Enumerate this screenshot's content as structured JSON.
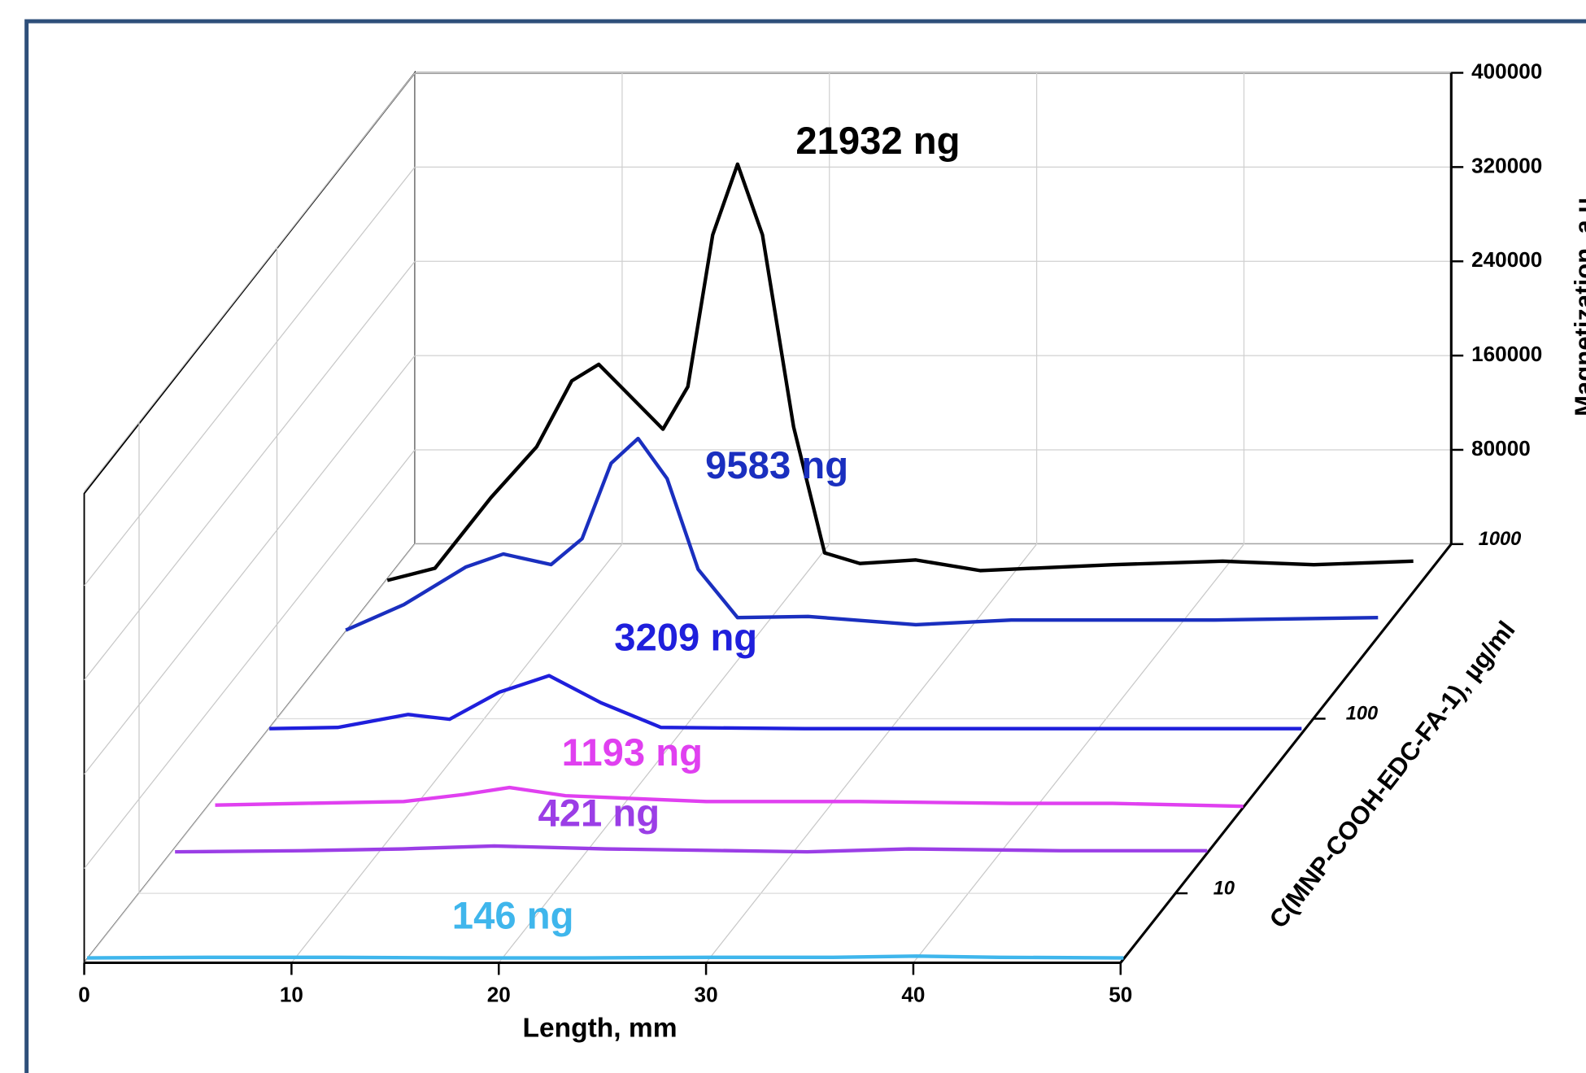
{
  "chart_data": {
    "type": "waterfall",
    "xlabel": "Length, mm",
    "ylabel": "Magnetization, a.u.",
    "zlabel": "C(MNP-COOH-EDC-FA-1), µg/ml",
    "xlim": [
      0,
      50
    ],
    "xticks": [
      0,
      10,
      20,
      30,
      40,
      50
    ],
    "ylim": [
      0,
      400000
    ],
    "yticks": [
      80000,
      160000,
      240000,
      320000,
      400000
    ],
    "zlim": [
      4,
      1000
    ],
    "zticks": [
      10,
      100,
      1000
    ],
    "zlog": true,
    "grid": true,
    "series": [
      {
        "name": "21932 ng",
        "color": "#000000",
        "z": 550,
        "x": [
          0.4,
          2.7,
          5.4,
          7.6,
          9.3,
          10.6,
          11.9,
          13.7,
          14.9,
          16.1,
          17.3,
          18.5,
          20.0,
          21.5,
          23.2,
          25.9,
          29.0,
          35.4,
          40.7,
          45.1,
          49.9
        ],
        "values": [
          7700,
          18000,
          78000,
          121000,
          177000,
          191000,
          168000,
          136000,
          172000,
          301000,
          361000,
          301000,
          138000,
          31000,
          22000,
          25000,
          16000,
          21000,
          24000,
          21000,
          24000
        ]
      },
      {
        "name": "9583 ng",
        "color": "#1a2fbf",
        "z": 305,
        "x": [
          0.1,
          2.9,
          5.9,
          7.7,
          10.0,
          11.5,
          12.9,
          14.2,
          15.6,
          17.1,
          19.0,
          22.4,
          27.6,
          32.2,
          42.0,
          49.9
        ],
        "values": [
          3400,
          25000,
          57000,
          68000,
          59000,
          81000,
          145000,
          166000,
          132000,
          55000,
          14000,
          15000,
          8000,
          12000,
          12000,
          14000
        ]
      },
      {
        "name": "3209 ng",
        "color": "#1f1fdc",
        "z": 85,
        "x": [
          0.1,
          3.4,
          6.8,
          8.8,
          11.2,
          13.6,
          16.1,
          19.0,
          25.9,
          35.6,
          49.9
        ],
        "values": [
          2000,
          3000,
          14000,
          10000,
          33000,
          47000,
          24000,
          3000,
          2000,
          2000,
          2000
        ]
      },
      {
        "name": "1193 ng",
        "color": "#e040f0",
        "z": 31,
        "x": [
          0.4,
          4.6,
          9.5,
          12.4,
          14.6,
          17.3,
          24.1,
          31.5,
          38.8,
          43.7,
          50
        ],
        "values": [
          2000,
          3500,
          5000,
          11000,
          17000,
          10000,
          5000,
          5000,
          3500,
          3500,
          1000
        ]
      },
      {
        "name": "421 ng",
        "color": "#9b3ee6",
        "z": 17,
        "x": [
          0.2,
          6.3,
          11.2,
          15.6,
          21.0,
          30.7,
          35.6,
          42.9,
          50
        ],
        "values": [
          1000,
          2000,
          3500,
          6000,
          3500,
          1000,
          3500,
          2000,
          2000
        ]
      },
      {
        "name": "146 ng",
        "color": "#3fb6ec",
        "z": 4.2,
        "x": [
          0,
          6,
          12,
          18,
          24,
          30,
          36,
          40,
          44,
          50
        ],
        "values": [
          1000,
          1500,
          1500,
          1000,
          1000,
          1500,
          1500,
          2500,
          1500,
          1000
        ]
      }
    ]
  }
}
